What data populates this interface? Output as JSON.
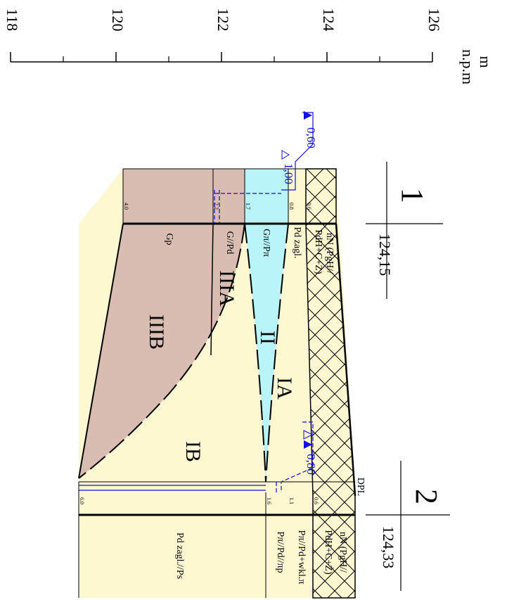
{
  "scale": {
    "unit": "m",
    "datum": "n.p.m",
    "ticks": [
      118,
      120,
      122,
      124,
      126
    ]
  },
  "boreholes": [
    {
      "number": "1",
      "elevation": "124,15",
      "depths": [
        "4.0",
        "2.2",
        "1.7",
        "0.8",
        "0.6"
      ],
      "layers": [
        "nN (PgH//",
        "PdH+C+Ż)",
        "Pd zagl.",
        "Gπ//Pπ",
        "G//Pd",
        "Gp"
      ]
    },
    {
      "number": "2",
      "elevation": "124,33",
      "mark": "DPL",
      "depths": [
        "6.0",
        "1.6",
        "1.1",
        "0.6"
      ],
      "layers": [
        "nN (PgH//",
        "PdH+C+Ż)",
        "Pπ//Pd+wkl.π",
        "Pπ//Pd//πp",
        "Pd zagl.//Ps"
      ]
    }
  ],
  "zones": [
    "IIIA",
    "IIIB",
    "II",
    "IA",
    "IB"
  ],
  "water_levels": [
    "0,60",
    "1,00",
    "0,80"
  ]
}
